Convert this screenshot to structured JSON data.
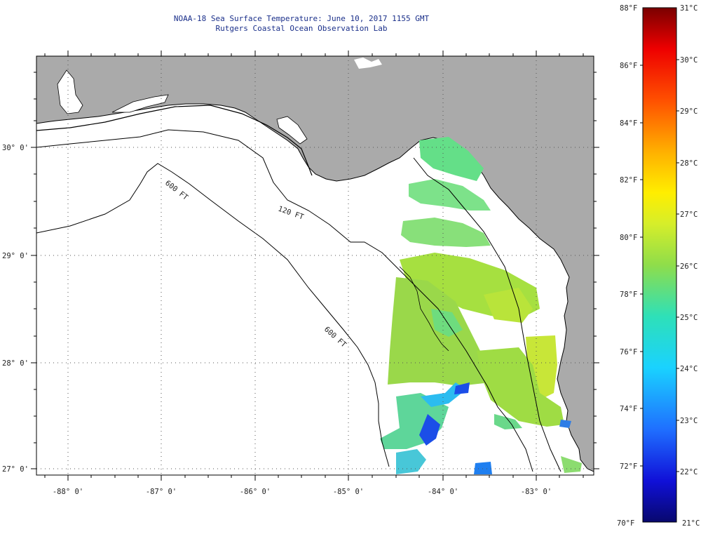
{
  "title": {
    "line1": "NOAA-18 Sea Surface Temperature:  June 10, 2017 1155 GMT",
    "line2": "Rutgers Coastal Ocean Observation Lab"
  },
  "map": {
    "region": "Northeastern Gulf of Mexico / Florida Big Bend",
    "lon_range": [
      -88.35,
      -82.35
    ],
    "lat_range": [
      26.95,
      30.85
    ],
    "lon_labels": [
      "-88° 0'",
      "-87° 0'",
      "-86° 0'",
      "-85° 0'",
      "-84° 0'",
      "-83° 0'"
    ],
    "lat_labels": [
      "30° 0'",
      "29° 0'",
      "28° 0'",
      "27° 0'"
    ],
    "isobath_labels": [
      "120 FT",
      "600 FT",
      "600 FT"
    ],
    "colors": {
      "land": "#aaaaaa",
      "ocean": "#ffffff",
      "grid": "#555555",
      "title": "#1a2f8a"
    }
  },
  "colorbar": {
    "fahrenheit_labels": [
      "88°F",
      "86°F",
      "84°F",
      "82°F",
      "80°F",
      "78°F",
      "76°F",
      "74°F",
      "72°F",
      "70°F"
    ],
    "celsius_labels": [
      "31°C",
      "30°C",
      "29°C",
      "28°C",
      "27°C",
      "26°C",
      "25°C",
      "24°C",
      "23°C",
      "22°C",
      "21°C"
    ],
    "range_f": [
      70,
      88
    ],
    "range_c": [
      21,
      31
    ]
  }
}
